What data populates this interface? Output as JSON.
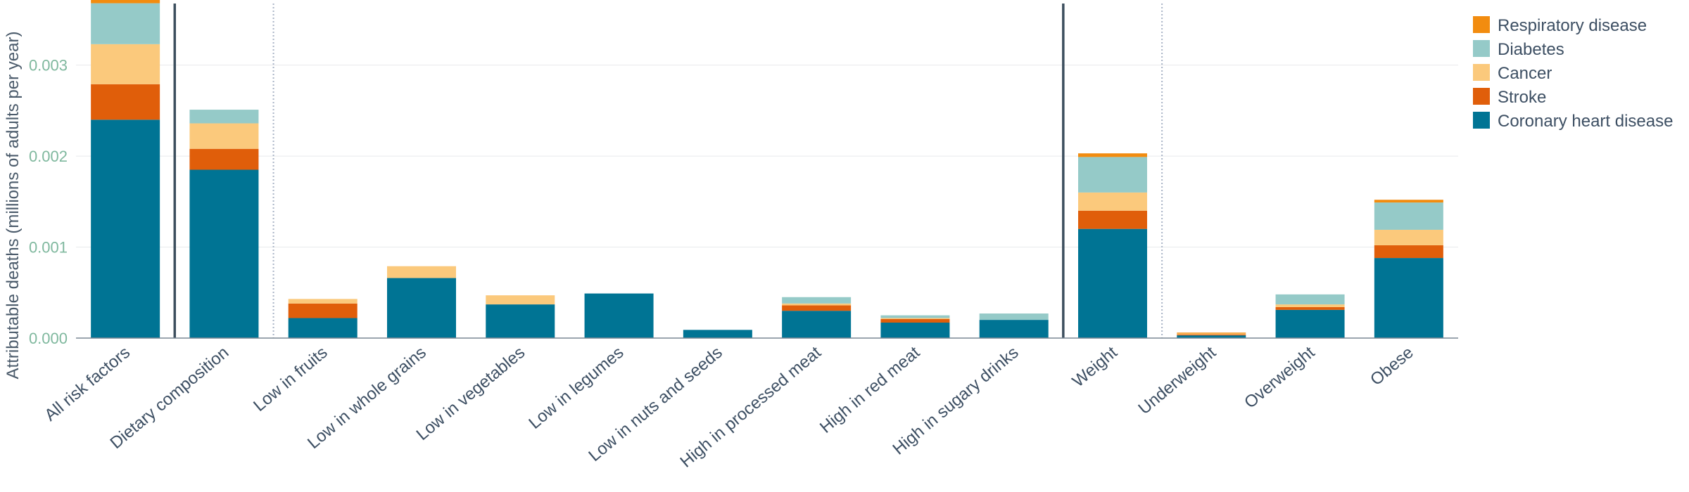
{
  "chart_data": {
    "type": "bar",
    "stacked": true,
    "title": "",
    "xlabel": "",
    "ylabel": "Attributable deaths (millions of adults per year)",
    "ylim": [
      0,
      0.0037
    ],
    "yticks": [
      0.0,
      0.001,
      0.002,
      0.003
    ],
    "ytick_labels": [
      "0.000",
      "0.001",
      "0.002",
      "0.003"
    ],
    "grid": true,
    "legend_position": "top-right",
    "categories": [
      "All risk factors",
      "Dietary composition",
      "Low in fruits",
      "Low in whole grains",
      "Low in vegetables",
      "Low in legumes",
      "Low in nuts and seeds",
      "High in processed meat",
      "High in red meat",
      "High in sugary drinks",
      "Weight",
      "Underweight",
      "Overweight",
      "Obese"
    ],
    "series": [
      {
        "name": "Coronary heart disease",
        "color": "#007494",
        "values": [
          0.0024,
          0.00185,
          0.00022,
          0.00066,
          0.00037,
          0.00049,
          9e-05,
          0.0003,
          0.00017,
          0.0002,
          0.0012,
          3e-05,
          0.00031,
          0.00088
        ]
      },
      {
        "name": "Stroke",
        "color": "#e05e0a",
        "values": [
          0.00039,
          0.00023,
          0.00016,
          0.0,
          0.0,
          0.0,
          0.0,
          6e-05,
          4e-05,
          0.0,
          0.0002,
          1e-05,
          3e-05,
          0.00014
        ]
      },
      {
        "name": "Cancer",
        "color": "#fbc97c",
        "values": [
          0.00044,
          0.00028,
          5e-05,
          0.00013,
          0.0001,
          0.0,
          0.0,
          2e-05,
          1e-05,
          0.0,
          0.0002,
          1e-05,
          3e-05,
          0.00017
        ]
      },
      {
        "name": "Diabetes",
        "color": "#95cac8",
        "values": [
          0.00045,
          0.00015,
          0.0,
          0.0,
          0.0,
          0.0,
          0.0,
          7e-05,
          3e-05,
          7e-05,
          0.00039,
          0.0,
          0.00011,
          0.0003
        ]
      },
      {
        "name": "Respiratory disease",
        "color": "#f28c0f",
        "values": [
          4e-05,
          0.0,
          0.0,
          0.0,
          0.0,
          0.0,
          0.0,
          0.0,
          0.0,
          0.0,
          4e-05,
          1e-05,
          0.0,
          3e-05
        ]
      }
    ],
    "legend_order": [
      "Respiratory disease",
      "Diabetes",
      "Cancer",
      "Stroke",
      "Coronary heart disease"
    ],
    "group_separators": [
      {
        "after": "All risk factors",
        "style": "solid"
      },
      {
        "after": "Dietary composition",
        "style": "dotted"
      },
      {
        "after": "High in sugary drinks",
        "style": "solid"
      },
      {
        "after": "Weight",
        "style": "dotted"
      }
    ]
  }
}
